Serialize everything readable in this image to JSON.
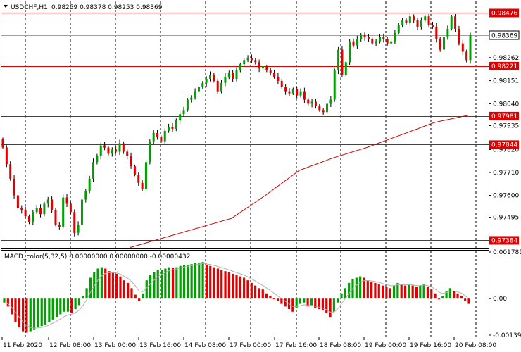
{
  "header": {
    "symbol": "USDCHF,H1",
    "ohlc": "0.98259 0.98378 0.98253 0.98369"
  },
  "macd_label": "MACD_color(5,32,5) 0.00000000 0.00000000 -0.00000432",
  "colors": {
    "bull": "#00a000",
    "bear": "#e00000",
    "wick": "#000000",
    "hline": "#e00000",
    "ma": "#d00000",
    "signal": "#b0b0b0",
    "tag_bg": "#e00000",
    "current_tag_bg": "#ffffff"
  },
  "chart_data": [
    {
      "type": "candlestick",
      "title": "USDCHF,H1",
      "ylim": [
        0.97355,
        0.98525
      ],
      "price_ticks": [
        "0.98262",
        "0.98151",
        "0.98040",
        "0.97935",
        "0.97820",
        "0.97710",
        "0.97600",
        "0.97495"
      ],
      "horizontal_levels": [
        "0.98476",
        "0.98221",
        "0.97981",
        "0.97844",
        "0.97384"
      ],
      "current_price": "0.98369",
      "x_labels": [
        "11 Feb 2020",
        "12 Feb 08:00",
        "13 Feb 00:00",
        "13 Feb 16:00",
        "14 Feb 08:00",
        "17 Feb 00:00",
        "17 Feb 16:00",
        "18 Feb 08:00",
        "19 Feb 00:00",
        "19 Feb 16:00",
        "20 Feb 08:00"
      ],
      "candles_close": [
        0.9783,
        0.9775,
        0.9768,
        0.976,
        0.9754,
        0.9753,
        0.975,
        0.9747,
        0.9752,
        0.9754,
        0.9751,
        0.9756,
        0.9758,
        0.9753,
        0.9746,
        0.9745,
        0.9759,
        0.9756,
        0.9752,
        0.9742,
        0.9746,
        0.9758,
        0.9762,
        0.9768,
        0.9776,
        0.9779,
        0.9784,
        0.9783,
        0.978,
        0.9782,
        0.9781,
        0.9785,
        0.9781,
        0.9779,
        0.9774,
        0.977,
        0.9766,
        0.9763,
        0.9776,
        0.9786,
        0.979,
        0.9788,
        0.9786,
        0.9791,
        0.9793,
        0.9792,
        0.9796,
        0.9799,
        0.9801,
        0.9806,
        0.9807,
        0.981,
        0.9812,
        0.9814,
        0.9816,
        0.9818,
        0.9815,
        0.981,
        0.9814,
        0.9817,
        0.9819,
        0.9816,
        0.982,
        0.9823,
        0.9825,
        0.9826,
        0.9825,
        0.9824,
        0.9821,
        0.9822,
        0.982,
        0.9819,
        0.9817,
        0.9815,
        0.9812,
        0.981,
        0.9809,
        0.9811,
        0.9808,
        0.981,
        0.9806,
        0.9804,
        0.9805,
        0.9803,
        0.9801,
        0.98,
        0.9804,
        0.9806,
        0.982,
        0.983,
        0.9818,
        0.9824,
        0.9834,
        0.9832,
        0.9835,
        0.9837,
        0.9836,
        0.9835,
        0.9833,
        0.9834,
        0.9836,
        0.9835,
        0.9833,
        0.9834,
        0.9838,
        0.9842,
        0.9844,
        0.9843,
        0.9846,
        0.9844,
        0.9841,
        0.9844,
        0.9846,
        0.9842,
        0.9841,
        0.9835,
        0.983,
        0.9836,
        0.984,
        0.9846,
        0.984,
        0.9833,
        0.9829,
        0.9825,
        0.98369
      ],
      "moving_average": [
        [
          0.0,
          0.9735
        ],
        [
          0.3,
          0.9749
        ],
        [
          0.4,
          0.976
        ],
        [
          0.5,
          0.9772
        ],
        [
          0.6,
          0.9778
        ],
        [
          0.7,
          0.9783
        ],
        [
          0.8,
          0.9789
        ],
        [
          0.9,
          0.9795
        ],
        [
          1.0,
          0.97985
        ]
      ]
    },
    {
      "type": "bar",
      "title": "MACD_color(5,32,5)",
      "ylim": [
        -0.001395,
        0.0017812
      ],
      "y_ticks": [
        "0.0017812",
        "0.00",
        "-0.001395"
      ],
      "histogram": [
        -0.00015,
        -0.0003,
        -0.0006,
        -0.0009,
        -0.0011,
        -0.00125,
        -0.0013,
        -0.00125,
        -0.0012,
        -0.0011,
        -0.00105,
        -0.001,
        -0.0009,
        -0.0008,
        -0.0007,
        -0.0006,
        -0.0005,
        -0.0005,
        -0.00055,
        -0.0004,
        -0.00025,
        0.0001,
        0.0004,
        0.0008,
        0.001,
        0.00115,
        0.0012,
        0.00115,
        0.00105,
        0.001,
        0.00095,
        0.00085,
        0.0007,
        0.0006,
        0.0004,
        0.00015,
        -0.0001,
        0.0002,
        0.0007,
        0.0009,
        0.001,
        0.0011,
        0.0011,
        0.00115,
        0.0012,
        0.00118,
        0.0012,
        0.00125,
        0.00128,
        0.0013,
        0.00132,
        0.00135,
        0.00138,
        0.0014,
        0.0013,
        0.00125,
        0.0012,
        0.00115,
        0.0011,
        0.00105,
        0.001,
        0.00095,
        0.0009,
        0.00085,
        0.0008,
        0.0007,
        0.0006,
        0.0005,
        0.0004,
        0.00035,
        0.0002,
        0.0001,
        0.0,
        -0.0001,
        -0.0002,
        -0.0003,
        -0.0004,
        -0.0005,
        -0.00035,
        -0.0002,
        -0.00015,
        -0.0003,
        -0.00025,
        -0.00035,
        -0.0004,
        -0.00045,
        -0.00055,
        -0.0007,
        -0.0005,
        -0.00015,
        0.0002,
        0.0004,
        0.0006,
        0.00075,
        0.0008,
        0.00085,
        0.0008,
        0.0007,
        0.00065,
        0.0006,
        0.00055,
        0.0005,
        0.00045,
        0.0004,
        0.0005,
        0.0006,
        0.00055,
        0.0005,
        0.00055,
        0.0005,
        0.00045,
        0.0005,
        0.00055,
        0.00045,
        0.00035,
        0.0002,
        0.0,
        0.0001,
        0.0003,
        0.0004,
        0.0003,
        0.0002,
        0.0001,
        -0.0001,
        -0.0002
      ]
    }
  ]
}
